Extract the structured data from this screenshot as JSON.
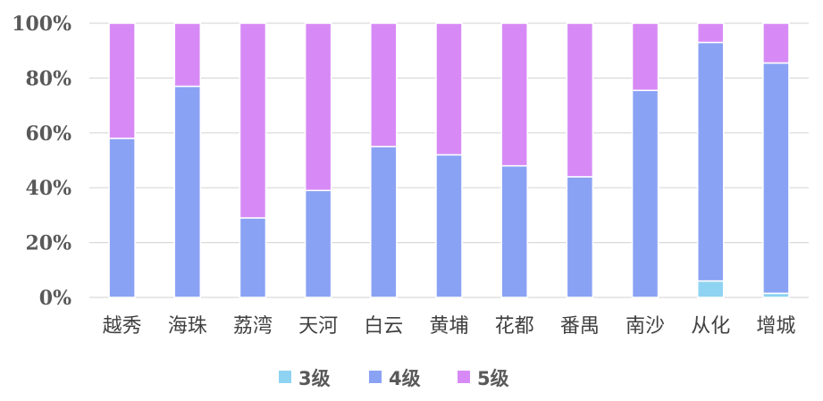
{
  "chart_data": {
    "type": "bar",
    "stacked": true,
    "percent": true,
    "categories": [
      "越秀",
      "海珠",
      "荔湾",
      "天河",
      "白云",
      "黄埔",
      "花都",
      "番禺",
      "南沙",
      "从化",
      "增城"
    ],
    "series": [
      {
        "name": "3级",
        "color": "#8fd3f2",
        "values": [
          0,
          0,
          0,
          0,
          0,
          0,
          0,
          0,
          0,
          6,
          1.5
        ]
      },
      {
        "name": "4级",
        "color": "#8aa2f4",
        "values": [
          58,
          77,
          29,
          39,
          55,
          52,
          48,
          44,
          75.5,
          87,
          84
        ]
      },
      {
        "name": "5级",
        "color": "#d78af5",
        "values": [
          42,
          23,
          71,
          61,
          45,
          48,
          52,
          56,
          24.5,
          7,
          14.5
        ]
      }
    ],
    "ylim": [
      0,
      100
    ],
    "yticks": [
      "0%",
      "20%",
      "40%",
      "60%",
      "80%",
      "100%"
    ],
    "grid": true,
    "legend_position": "bottom"
  }
}
